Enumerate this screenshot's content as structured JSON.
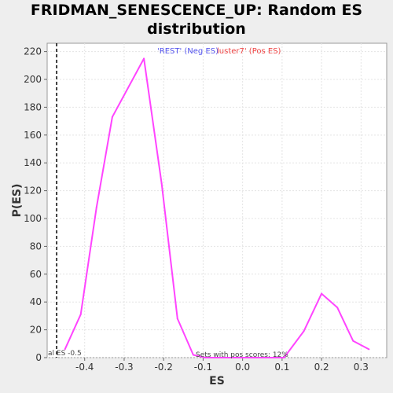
{
  "chart_data": {
    "type": "line",
    "title_line1": "FRIDMAN_SENESCENCE_UP: Random ES",
    "title_line2": "distribution",
    "xlabel": "ES",
    "ylabel": "P(ES)",
    "xlim": [
      -0.495,
      0.365
    ],
    "ylim": [
      0,
      226
    ],
    "x_ticks": [
      -0.4,
      -0.3,
      -0.2,
      -0.1,
      0.0,
      0.1,
      0.2,
      0.3
    ],
    "x_tick_labels": [
      "-0.4",
      "-0.3",
      "-0.2",
      "-0.1",
      "0.0",
      "0.1",
      "0.2",
      "0.3"
    ],
    "y_ticks": [
      0,
      20,
      40,
      60,
      80,
      100,
      120,
      140,
      160,
      180,
      200,
      220
    ],
    "y_tick_labels": [
      "0",
      "20",
      "40",
      "60",
      "80",
      "100",
      "120",
      "140",
      "160",
      "180",
      "200",
      "220"
    ],
    "grid": true,
    "series": [
      {
        "color": "#ff44ff",
        "x": [
          -0.45,
          -0.41,
          -0.37,
          -0.33,
          -0.25,
          -0.205,
          -0.165,
          -0.125,
          -0.095,
          0.06,
          0.105,
          0.155,
          0.2,
          0.24,
          0.28,
          0.32
        ],
        "y": [
          6,
          31,
          108,
          173,
          215,
          125,
          28,
          2,
          0,
          0,
          0,
          19,
          46,
          36,
          12,
          6
        ]
      }
    ],
    "reference_line": {
      "x": -0.471,
      "style": "dashed",
      "color": "#000000",
      "label": "al ES -0.5"
    },
    "legend": [
      {
        "text": "'REST' (Neg ES)",
        "color": "#5555ee"
      },
      {
        "text": "luster7' (Pos ES)",
        "color": "#ee4444"
      }
    ],
    "annotation": "Sets with pos scores: 12%"
  }
}
